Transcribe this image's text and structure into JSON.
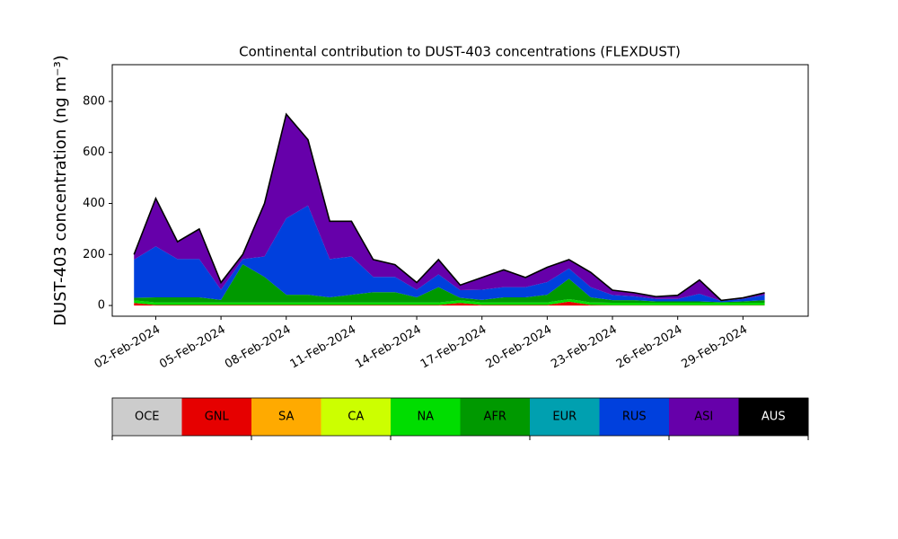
{
  "chart_data": {
    "type": "stacked_area",
    "title": "Continental contribution to DUST-403 concentrations (FLEXDUST)",
    "ylabel": "DUST-403 concentration (ng m⁻³)",
    "x": [
      "2024-02-01",
      "2024-02-02",
      "2024-02-03",
      "2024-02-04",
      "2024-02-05",
      "2024-02-06",
      "2024-02-07",
      "2024-02-08",
      "2024-02-09",
      "2024-02-10",
      "2024-02-11",
      "2024-02-12",
      "2024-02-13",
      "2024-02-14",
      "2024-02-15",
      "2024-02-16",
      "2024-02-17",
      "2024-02-18",
      "2024-02-19",
      "2024-02-20",
      "2024-02-21",
      "2024-02-22",
      "2024-02-23",
      "2024-02-24",
      "2024-02-25",
      "2024-02-26",
      "2024-02-27",
      "2024-02-28",
      "2024-02-29",
      "2024-03-01"
    ],
    "xlim": [
      "2024-01-31",
      "2024-03-03"
    ],
    "xticks": [
      {
        "value": "2024-02-02",
        "label": "02-Feb-2024"
      },
      {
        "value": "2024-02-05",
        "label": "05-Feb-2024"
      },
      {
        "value": "2024-02-08",
        "label": "08-Feb-2024"
      },
      {
        "value": "2024-02-11",
        "label": "11-Feb-2024"
      },
      {
        "value": "2024-02-14",
        "label": "14-Feb-2024"
      },
      {
        "value": "2024-02-17",
        "label": "17-Feb-2024"
      },
      {
        "value": "2024-02-20",
        "label": "20-Feb-2024"
      },
      {
        "value": "2024-02-23",
        "label": "23-Feb-2024"
      },
      {
        "value": "2024-02-26",
        "label": "26-Feb-2024"
      },
      {
        "value": "2024-02-29",
        "label": "29-Feb-2024"
      }
    ],
    "ylim": [
      -42,
      944
    ],
    "yticks": [
      0,
      200,
      400,
      600,
      800
    ],
    "series": [
      {
        "name": "OCE",
        "color": "#cccccc",
        "values": [
          0,
          0,
          0,
          0,
          0,
          0,
          0,
          0,
          0,
          0,
          0,
          0,
          0,
          0,
          0,
          0,
          0,
          0,
          0,
          0,
          0,
          0,
          0,
          0,
          0,
          0,
          0,
          0,
          0,
          0
        ]
      },
      {
        "name": "GNL",
        "color": "#e60000",
        "values": [
          10,
          2,
          2,
          2,
          2,
          2,
          2,
          2,
          2,
          2,
          2,
          2,
          2,
          2,
          2,
          10,
          2,
          2,
          2,
          2,
          15,
          2,
          1,
          1,
          1,
          1,
          1,
          1,
          1,
          1
        ]
      },
      {
        "name": "SA",
        "color": "#ffaa00",
        "values": [
          0,
          0,
          0,
          0,
          0,
          0,
          0,
          0,
          0,
          0,
          0,
          0,
          0,
          0,
          0,
          0,
          0,
          0,
          0,
          0,
          0,
          0,
          0,
          0,
          0,
          0,
          0,
          0,
          0,
          0
        ]
      },
      {
        "name": "CA",
        "color": "#ccff00",
        "values": [
          0,
          0,
          0,
          0,
          0,
          0,
          0,
          0,
          0,
          0,
          0,
          0,
          0,
          0,
          0,
          0,
          0,
          0,
          0,
          0,
          0,
          0,
          0,
          0,
          0,
          0,
          0,
          0,
          0,
          0
        ]
      },
      {
        "name": "NA",
        "color": "#00dd00",
        "values": [
          10,
          10,
          10,
          10,
          10,
          10,
          10,
          10,
          10,
          10,
          10,
          10,
          10,
          10,
          10,
          10,
          10,
          10,
          10,
          10,
          10,
          10,
          10,
          10,
          10,
          10,
          10,
          10,
          10,
          10
        ]
      },
      {
        "name": "AFR",
        "color": "#009900",
        "values": [
          10,
          20,
          20,
          20,
          10,
          150,
          100,
          30,
          30,
          20,
          30,
          40,
          40,
          20,
          60,
          10,
          10,
          20,
          20,
          30,
          80,
          20,
          10,
          10,
          5,
          5,
          5,
          2,
          5,
          10
        ]
      },
      {
        "name": "EUR",
        "color": "#00a0b0",
        "values": [
          0,
          0,
          0,
          0,
          0,
          0,
          0,
          0,
          0,
          0,
          0,
          0,
          0,
          0,
          0,
          0,
          0,
          0,
          0,
          0,
          0,
          0,
          0,
          0,
          0,
          0,
          0,
          0,
          0,
          0
        ]
      },
      {
        "name": "RUS",
        "color": "#0040dd",
        "values": [
          150,
          200,
          150,
          150,
          40,
          20,
          80,
          300,
          350,
          150,
          150,
          60,
          60,
          30,
          50,
          30,
          40,
          40,
          40,
          50,
          40,
          40,
          20,
          15,
          10,
          10,
          30,
          5,
          10,
          20
        ]
      },
      {
        "name": "ASI",
        "color": "#6600aa",
        "values": [
          20,
          188,
          68,
          118,
          28,
          18,
          208,
          408,
          258,
          148,
          138,
          68,
          48,
          28,
          58,
          20,
          48,
          68,
          38,
          58,
          35,
          58,
          19,
          14,
          9,
          14,
          54,
          2,
          4,
          9
        ]
      },
      {
        "name": "AUS",
        "color": "#000000",
        "values": [
          0,
          0,
          0,
          0,
          0,
          0,
          0,
          0,
          0,
          0,
          0,
          0,
          0,
          0,
          0,
          0,
          0,
          0,
          0,
          0,
          0,
          0,
          0,
          0,
          0,
          0,
          0,
          0,
          0,
          0
        ]
      }
    ]
  }
}
